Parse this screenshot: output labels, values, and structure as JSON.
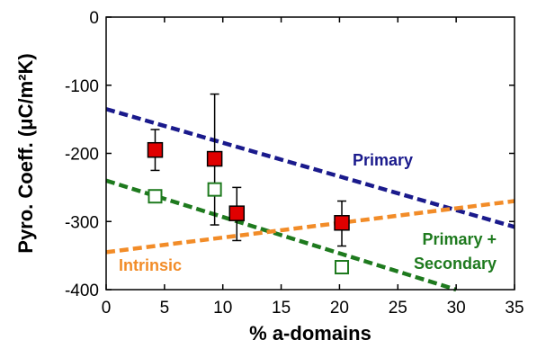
{
  "chart_data": {
    "type": "scatter",
    "xlabel": "% a-domains",
    "ylabel": "Pyro. Coeff. (μC/m²K)",
    "xlim": [
      0,
      35
    ],
    "ylim": [
      -400,
      0
    ],
    "x_ticks": [
      "0",
      "5",
      "10",
      "15",
      "20",
      "25",
      "30",
      "35"
    ],
    "y_ticks": [
      "0",
      "-100",
      "-200",
      "-300",
      "-400"
    ],
    "lines": [
      {
        "label": "Primary",
        "color": "#1a1a8c",
        "start": [
          0,
          -135
        ],
        "end": [
          35,
          -308
        ]
      },
      {
        "label": "Primary +",
        "label2": "Secondary",
        "color": "#1e7a1e",
        "start": [
          0,
          -240
        ],
        "end": [
          30,
          -400
        ]
      },
      {
        "label": "Intrinsic",
        "color": "#f28c28",
        "start": [
          0,
          -345
        ],
        "end": [
          35,
          -270
        ]
      }
    ],
    "series": [
      {
        "marker": "filled-square",
        "color": "#e00000",
        "points": [
          {
            "x": 4.2,
            "y": -195,
            "err_low": -225,
            "err_high": -165
          },
          {
            "x": 9.3,
            "y": -208,
            "err_low": -305,
            "err_high": -113
          },
          {
            "x": 11.2,
            "y": -288,
            "err_low": -328,
            "err_high": -250
          },
          {
            "x": 20.2,
            "y": -302,
            "err_low": -336,
            "err_high": -270
          }
        ]
      },
      {
        "marker": "open-square",
        "color": "#1e7a1e",
        "points": [
          {
            "x": 4.2,
            "y": -263
          },
          {
            "x": 9.3,
            "y": -253
          },
          {
            "x": 20.2,
            "y": -367
          }
        ]
      }
    ]
  }
}
